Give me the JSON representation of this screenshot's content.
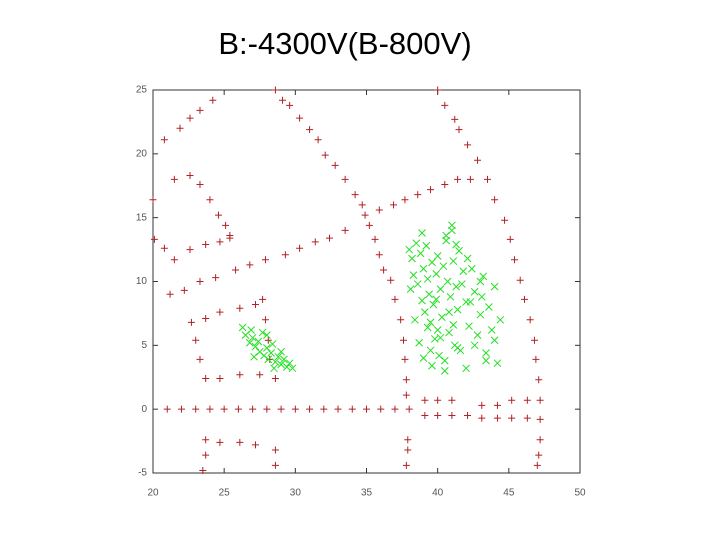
{
  "chart_data": {
    "type": "scatter",
    "title": "B:-4300V(B-800V)",
    "xlim": [
      20,
      50
    ],
    "xticks": [
      20,
      25,
      30,
      35,
      40,
      45,
      50
    ],
    "ylim": [
      -5,
      25
    ],
    "yticks": [
      -5,
      0,
      5,
      10,
      15,
      20,
      25
    ],
    "series": [
      {
        "color": "#b22222",
        "marker": "plus",
        "x": [
          20.0,
          20.8,
          21.9,
          22.6,
          23.3,
          24.2,
          28.6,
          29.1,
          29.6,
          30.3,
          31.0,
          31.6,
          32.1,
          32.8,
          33.5,
          34.2,
          34.7,
          35.2,
          35.6,
          35.9,
          36.2,
          36.7,
          37.0,
          37.4,
          37.6,
          37.7,
          37.8,
          37.8,
          37.9,
          37.9,
          37.8,
          40.0,
          40.5,
          41.2,
          41.5,
          42.1,
          42.8,
          43.5,
          44.0,
          44.7,
          45.1,
          45.4,
          45.8,
          46.1,
          46.5,
          46.8,
          46.9,
          47.1,
          47.2,
          47.2,
          47.2,
          47.1,
          47.0,
          34.9,
          35.9,
          36.9,
          37.7,
          38.6,
          39.5,
          40.5,
          41.4,
          42.3,
          21.2,
          22.2,
          23.3,
          24.4,
          25.8,
          26.8,
          27.9,
          29.3,
          30.3,
          31.4,
          32.4,
          33.5,
          20.1,
          20.8,
          21.5,
          22.6,
          23.7,
          24.7,
          25.4,
          21.5,
          22.6,
          23.3,
          24.0,
          24.6,
          25.1,
          25.4,
          22.7,
          23.0,
          23.3,
          23.7,
          24.7,
          26.1,
          27.5,
          28.6,
          27.7,
          27.9,
          28.1,
          28.2,
          23.7,
          24.7,
          26.1,
          27.2,
          23.7,
          24.7,
          26.1,
          27.2,
          28.6,
          28.6,
          23.7,
          23.5,
          21,
          22,
          23,
          24,
          25,
          26,
          27,
          28,
          29,
          30,
          31,
          32,
          33,
          34,
          35,
          36,
          37,
          38,
          39.1,
          39.1,
          40.0,
          40.0,
          41.0,
          41.0,
          42.1,
          43.1,
          43.1,
          44.2,
          44.2,
          45.2,
          45.2,
          46.3,
          46.3
        ],
        "values": [
          16.4,
          21.1,
          22.0,
          22.8,
          23.4,
          24.2,
          25.0,
          24.2,
          23.8,
          22.8,
          21.9,
          21.1,
          19.9,
          19.1,
          18.0,
          16.8,
          16.0,
          14.4,
          13.3,
          12.1,
          10.9,
          10.1,
          8.6,
          7.0,
          5.4,
          3.9,
          2.3,
          1.1,
          -2.4,
          -3.2,
          -4.4,
          25.0,
          23.8,
          22.7,
          21.9,
          20.7,
          19.5,
          18.0,
          16.4,
          14.8,
          13.3,
          11.7,
          10.1,
          8.6,
          7.0,
          5.4,
          3.9,
          2.3,
          0.7,
          -0.8,
          -2.4,
          -3.6,
          -4.4,
          15.2,
          15.6,
          16.0,
          16.4,
          16.8,
          17.2,
          17.6,
          18.0,
          18.0,
          9.0,
          9.3,
          10.0,
          10.3,
          10.9,
          11.3,
          11.7,
          12.1,
          12.6,
          13.1,
          13.4,
          14.0,
          13.3,
          12.6,
          11.7,
          12.5,
          12.9,
          13.1,
          13.4,
          18.0,
          18.3,
          17.6,
          16.4,
          15.2,
          14.4,
          13.6,
          6.8,
          5.4,
          3.9,
          2.4,
          2.4,
          2.7,
          2.7,
          2.4,
          8.6,
          7.0,
          5.4,
          3.9,
          7.1,
          7.6,
          7.9,
          8.2,
          -2.4,
          -2.6,
          -2.6,
          -2.8,
          -3.2,
          -4.4,
          -3.6,
          -4.8,
          0,
          0,
          0,
          0,
          0,
          0,
          0,
          0,
          0,
          0,
          0,
          0,
          0,
          0,
          0,
          0,
          0,
          0,
          0.7,
          -0.5,
          0.7,
          -0.5,
          0.7,
          -0.5,
          -0.5,
          0.3,
          -0.7,
          0.3,
          -0.7,
          0.7,
          -0.7,
          0.7,
          -0.7
        ]
      },
      {
        "color": "#22e022",
        "marker": "cross",
        "x": [
          26.3,
          26.5,
          26.8,
          27.0,
          27.2,
          27.4,
          27.5,
          27.7,
          27.8,
          28.0,
          28.1,
          28.3,
          28.4,
          28.6,
          28.8,
          29.0,
          29.2,
          29.4,
          29.6,
          29.8,
          27.1,
          28.0,
          26.9,
          29.0,
          28.5,
          38.0,
          38.2,
          38.3,
          38.5,
          38.6,
          38.8,
          38.9,
          39.0,
          39.1,
          39.2,
          39.3,
          39.4,
          39.5,
          39.6,
          39.7,
          39.8,
          39.9,
          40.0,
          40.1,
          40.2,
          40.3,
          40.4,
          40.5,
          40.6,
          40.7,
          40.8,
          40.9,
          41.0,
          41.1,
          41.2,
          41.3,
          41.4,
          41.5,
          41.6,
          41.8,
          42.0,
          42.2,
          42.4,
          42.6,
          42.8,
          43.0,
          43.2,
          43.4,
          43.6,
          43.8,
          44.0,
          44.2,
          44.4,
          38.4,
          38.7,
          39.0,
          39.3,
          39.6,
          39.9,
          40.2,
          40.5,
          40.8,
          41.1,
          41.4,
          41.7,
          42.0,
          42.3,
          42.6,
          43.0,
          43.4,
          40.6,
          41.0,
          41.3,
          38.1,
          38.9,
          39.5,
          40.0,
          42.1,
          43.1,
          44.0
        ],
        "values": [
          6.4,
          5.8,
          5.2,
          5.6,
          4.9,
          5.3,
          4.5,
          6.0,
          4.2,
          4.8,
          3.9,
          4.4,
          5.1,
          3.7,
          4.1,
          3.5,
          3.9,
          3.3,
          3.6,
          3.2,
          4.1,
          5.8,
          6.2,
          4.5,
          3.2,
          12.5,
          11.8,
          10.5,
          13.0,
          9.8,
          12.2,
          8.5,
          11.0,
          7.6,
          12.8,
          10.2,
          9.0,
          6.8,
          11.5,
          8.2,
          5.5,
          10.6,
          12.0,
          4.2,
          9.4,
          7.2,
          11.2,
          3.8,
          13.6,
          10.0,
          6.0,
          8.8,
          14.4,
          11.6,
          5.0,
          9.6,
          7.8,
          12.4,
          4.6,
          10.8,
          8.4,
          6.5,
          11.0,
          9.2,
          5.8,
          7.4,
          10.4,
          4.4,
          8.0,
          6.2,
          9.6,
          3.6,
          7.0,
          7.0,
          5.2,
          4.0,
          6.4,
          3.4,
          8.6,
          5.6,
          3.0,
          7.6,
          6.6,
          4.8,
          9.8,
          3.2,
          8.4,
          5.0,
          10.0,
          3.8,
          13.2,
          14.0,
          12.9,
          9.4,
          13.8,
          4.6,
          6.2,
          11.8,
          8.8,
          5.4
        ]
      }
    ]
  }
}
